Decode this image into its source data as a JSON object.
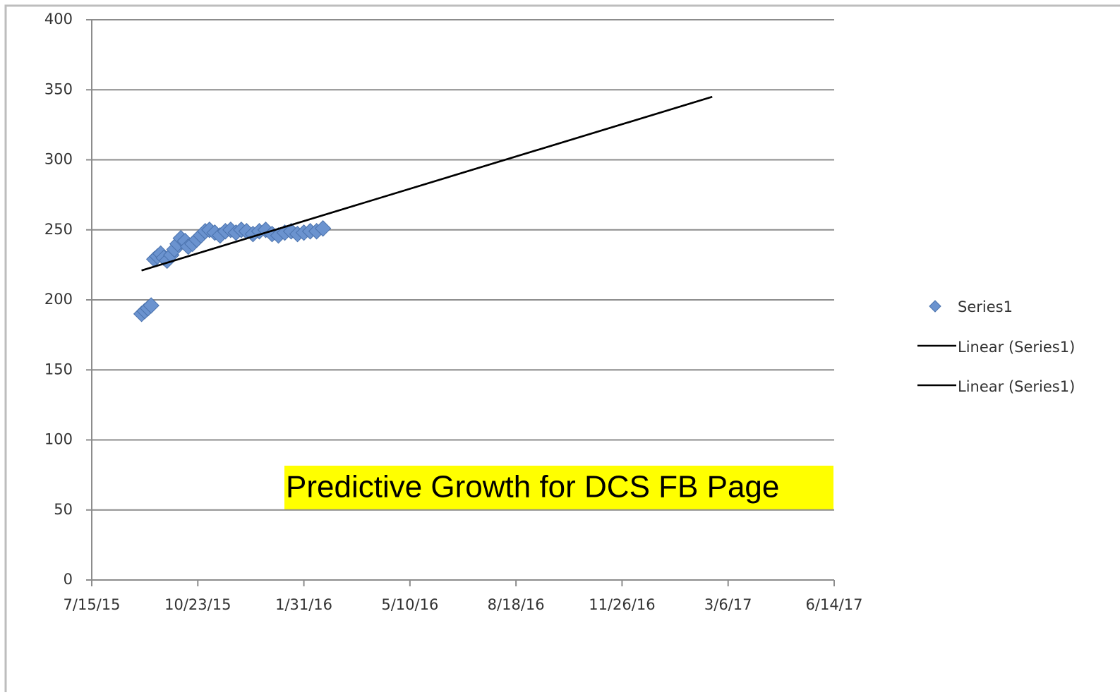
{
  "chart_data": {
    "type": "scatter",
    "annotation": "Predictive Growth for DCS FB Page",
    "series": [
      {
        "name": "Series1",
        "color": "#6b93cf",
        "mode": "markers",
        "x": [
          42247,
          42250,
          42253,
          42256,
          42259,
          42262,
          42265,
          42268,
          42271,
          42275,
          42278,
          42281,
          42284,
          42288,
          42291,
          42295,
          42299,
          42303,
          42307,
          42311,
          42316,
          42321,
          42326,
          42331,
          42336,
          42341,
          42346,
          42352,
          42358,
          42364,
          42370,
          42376,
          42382,
          42388,
          42394,
          42400,
          42406,
          42412,
          42418
        ],
        "values": [
          190,
          192,
          194,
          196,
          229,
          231,
          233,
          230,
          228,
          232,
          236,
          240,
          244,
          242,
          238,
          240,
          243,
          246,
          249,
          250,
          248,
          246,
          249,
          250,
          248,
          250,
          249,
          247,
          249,
          250,
          247,
          246,
          248,
          249,
          247,
          248,
          249,
          249,
          251
        ]
      },
      {
        "name": "Linear (Series1)",
        "color": "#000000",
        "mode": "line",
        "x": [
          42247,
          42785
        ],
        "values": [
          221,
          345
        ]
      },
      {
        "name": "Linear (Series1)",
        "color": "#000000",
        "mode": "line",
        "x": [
          42247,
          42785
        ],
        "values": [
          221,
          345
        ]
      }
    ],
    "xlim": [
      42200,
      42900
    ],
    "xticks": [
      {
        "value": 42200,
        "label": "7/15/15"
      },
      {
        "value": 42300,
        "label": "10/23/15"
      },
      {
        "value": 42400,
        "label": "1/31/16"
      },
      {
        "value": 42500,
        "label": "5/10/16"
      },
      {
        "value": 42600,
        "label": "8/18/16"
      },
      {
        "value": 42700,
        "label": "11/26/16"
      },
      {
        "value": 42800,
        "label": "3/6/17"
      },
      {
        "value": 42900,
        "label": "6/14/17"
      }
    ],
    "ylim": [
      0,
      400
    ],
    "yticks": [
      0,
      50,
      100,
      150,
      200,
      250,
      300,
      350,
      400
    ],
    "grid": true
  }
}
